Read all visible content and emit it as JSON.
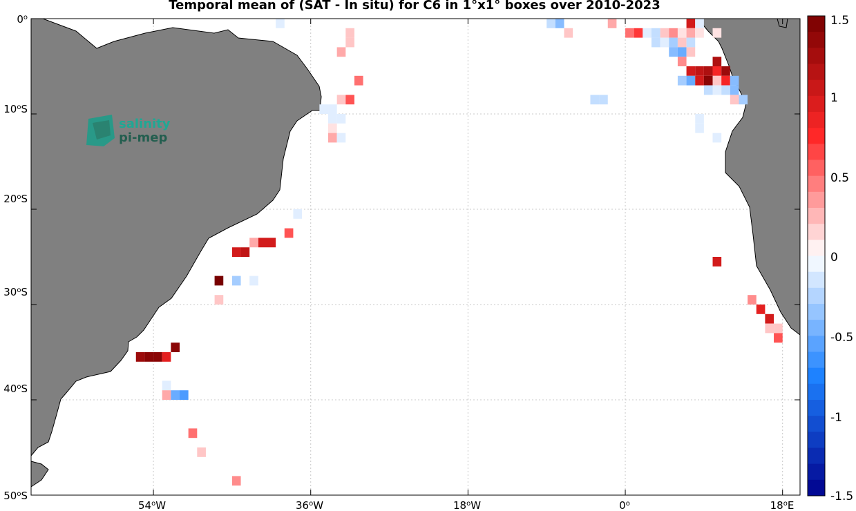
{
  "title": "Temporal mean of (SAT - In situ) for C6 in 1°x1° boxes over 2010-2023",
  "logo": {
    "line1": "salinity",
    "line2": "pi-mep"
  },
  "axes": {
    "x_ticks": [
      {
        "deg": "54",
        "dir": "W"
      },
      {
        "deg": "36",
        "dir": "W"
      },
      {
        "deg": "18",
        "dir": "W"
      },
      {
        "deg": "0",
        "dir": ""
      },
      {
        "deg": "18",
        "dir": "E"
      }
    ],
    "y_ticks": [
      {
        "deg": "0",
        "dir": ""
      },
      {
        "deg": "10",
        "dir": "S"
      },
      {
        "deg": "20",
        "dir": "S"
      },
      {
        "deg": "30",
        "dir": "S"
      },
      {
        "deg": "40",
        "dir": "S"
      },
      {
        "deg": "50",
        "dir": "S"
      }
    ]
  },
  "colorbar": {
    "labels": [
      "1.5",
      "1",
      "0.5",
      "0",
      "-0.5",
      "-1",
      "-1.5"
    ],
    "range": [
      -1.5,
      1.5
    ]
  },
  "colors": {
    "land": "#808080",
    "grid": "#c8c8c8"
  },
  "chart_data": {
    "type": "heatmap",
    "title": "Temporal mean of (SAT - In situ) for C6 in 1°x1° boxes over 2010-2023",
    "lon_range": [
      -68,
      20
    ],
    "lat_range": [
      -50,
      0
    ],
    "value_range": [
      -1.5,
      1.5
    ],
    "cells": [
      {
        "lon": -39.5,
        "lat": -0.5,
        "v": -0.1
      },
      {
        "lon": -8.5,
        "lat": -0.5,
        "v": -0.2
      },
      {
        "lon": -7.5,
        "lat": -0.5,
        "v": -0.4
      },
      {
        "lon": -1.5,
        "lat": -0.5,
        "v": 0.3
      },
      {
        "lon": 7.5,
        "lat": -0.5,
        "v": 1.0
      },
      {
        "lon": 8.5,
        "lat": -0.5,
        "v": -0.1
      },
      {
        "lon": -6.5,
        "lat": -1.5,
        "v": 0.2
      },
      {
        "lon": 0.5,
        "lat": -1.5,
        "v": 0.5
      },
      {
        "lon": 1.5,
        "lat": -1.5,
        "v": 0.7
      },
      {
        "lon": 2.5,
        "lat": -1.5,
        "v": -0.1
      },
      {
        "lon": 3.5,
        "lat": -1.5,
        "v": -0.2
      },
      {
        "lon": 4.5,
        "lat": -1.5,
        "v": 0.2
      },
      {
        "lon": 5.5,
        "lat": -1.5,
        "v": 0.4
      },
      {
        "lon": 6.5,
        "lat": -1.5,
        "v": 0.1
      },
      {
        "lon": 7.5,
        "lat": -1.5,
        "v": 0.3
      },
      {
        "lon": 8.5,
        "lat": -1.5,
        "v": 0.1
      },
      {
        "lon": 10.5,
        "lat": -1.5,
        "v": 0.1
      },
      {
        "lon": -31.5,
        "lat": -1.5,
        "v": 0.2
      },
      {
        "lon": -31.5,
        "lat": -2.5,
        "v": 0.2
      },
      {
        "lon": 3.5,
        "lat": -2.5,
        "v": -0.2
      },
      {
        "lon": 4.5,
        "lat": -2.5,
        "v": -0.1
      },
      {
        "lon": 5.5,
        "lat": -2.5,
        "v": -0.3
      },
      {
        "lon": 6.5,
        "lat": -2.5,
        "v": 0.2
      },
      {
        "lon": 7.5,
        "lat": -2.5,
        "v": -0.2
      },
      {
        "lon": 5.5,
        "lat": -3.5,
        "v": -0.4
      },
      {
        "lon": 6.5,
        "lat": -3.5,
        "v": -0.5
      },
      {
        "lon": 7.5,
        "lat": -3.5,
        "v": 0.2
      },
      {
        "lon": -32.5,
        "lat": -3.5,
        "v": 0.3
      },
      {
        "lon": 6.5,
        "lat": -4.5,
        "v": 0.4
      },
      {
        "lon": 10.5,
        "lat": -4.5,
        "v": 1.2
      },
      {
        "lon": 7.5,
        "lat": -5.5,
        "v": 1.0
      },
      {
        "lon": 8.5,
        "lat": -5.5,
        "v": 1.1
      },
      {
        "lon": 9.5,
        "lat": -5.5,
        "v": 1.2
      },
      {
        "lon": 10.5,
        "lat": -5.5,
        "v": 0.8
      },
      {
        "lon": 11.5,
        "lat": -5.5,
        "v": 1.3
      },
      {
        "lon": -30.5,
        "lat": -6.5,
        "v": 0.5
      },
      {
        "lon": 6.5,
        "lat": -6.5,
        "v": -0.3
      },
      {
        "lon": 7.5,
        "lat": -6.5,
        "v": -0.5
      },
      {
        "lon": 8.5,
        "lat": -6.5,
        "v": 1.0
      },
      {
        "lon": 9.5,
        "lat": -6.5,
        "v": 1.4
      },
      {
        "lon": 10.5,
        "lat": -6.5,
        "v": 0.2
      },
      {
        "lon": 11.5,
        "lat": -6.5,
        "v": 0.8
      },
      {
        "lon": 12.5,
        "lat": -6.5,
        "v": -0.4
      },
      {
        "lon": 9.5,
        "lat": -7.5,
        "v": -0.2
      },
      {
        "lon": 10.5,
        "lat": -7.5,
        "v": -0.1
      },
      {
        "lon": 11.5,
        "lat": -7.5,
        "v": -0.2
      },
      {
        "lon": 12.5,
        "lat": -7.5,
        "v": -0.4
      },
      {
        "lon": 13.5,
        "lat": -8.5,
        "v": -0.3
      },
      {
        "lon": 12.5,
        "lat": -8.5,
        "v": 0.2
      },
      {
        "lon": -32.5,
        "lat": -8.5,
        "v": 0.2
      },
      {
        "lon": -31.5,
        "lat": -8.5,
        "v": 0.6
      },
      {
        "lon": -3.5,
        "lat": -8.5,
        "v": -0.2
      },
      {
        "lon": -2.5,
        "lat": -8.5,
        "v": -0.2
      },
      {
        "lon": -34.5,
        "lat": -9.5,
        "v": -0.1
      },
      {
        "lon": -33.5,
        "lat": -9.5,
        "v": -0.1
      },
      {
        "lon": -33.5,
        "lat": -10.5,
        "v": -0.1
      },
      {
        "lon": -32.5,
        "lat": -10.5,
        "v": -0.1
      },
      {
        "lon": -33.5,
        "lat": -11.5,
        "v": 0.1
      },
      {
        "lon": 8.5,
        "lat": -10.5,
        "v": -0.1
      },
      {
        "lon": 8.5,
        "lat": -11.5,
        "v": -0.1
      },
      {
        "lon": -33.5,
        "lat": -12.5,
        "v": 0.3
      },
      {
        "lon": -32.5,
        "lat": -12.5,
        "v": -0.1
      },
      {
        "lon": 10.5,
        "lat": -12.5,
        "v": -0.1
      },
      {
        "lon": -37.5,
        "lat": -20.5,
        "v": -0.1
      },
      {
        "lon": -38.5,
        "lat": -22.5,
        "v": 0.6
      },
      {
        "lon": -40.5,
        "lat": -23.5,
        "v": 1.0
      },
      {
        "lon": -41.5,
        "lat": -23.5,
        "v": 1.0
      },
      {
        "lon": -42.5,
        "lat": -23.5,
        "v": 0.3
      },
      {
        "lon": -43.5,
        "lat": -24.5,
        "v": 1.1
      },
      {
        "lon": -44.5,
        "lat": -24.5,
        "v": 1.0
      },
      {
        "lon": 10.5,
        "lat": -25.5,
        "v": 1.0
      },
      {
        "lon": -46.5,
        "lat": -27.5,
        "v": 1.5
      },
      {
        "lon": -44.5,
        "lat": -27.5,
        "v": -0.3
      },
      {
        "lon": -42.5,
        "lat": -27.5,
        "v": -0.1
      },
      {
        "lon": -46.5,
        "lat": -29.5,
        "v": 0.2
      },
      {
        "lon": 14.5,
        "lat": -29.5,
        "v": 0.4
      },
      {
        "lon": 15.5,
        "lat": -30.5,
        "v": 0.9
      },
      {
        "lon": 16.5,
        "lat": -31.5,
        "v": 1.0
      },
      {
        "lon": 16.5,
        "lat": -32.5,
        "v": 0.2
      },
      {
        "lon": 17.5,
        "lat": -32.5,
        "v": 0.2
      },
      {
        "lon": 17.5,
        "lat": -33.5,
        "v": 0.6
      },
      {
        "lon": -51.5,
        "lat": -34.5,
        "v": 1.4
      },
      {
        "lon": -53.5,
        "lat": -35.5,
        "v": 1.4
      },
      {
        "lon": -54.5,
        "lat": -35.5,
        "v": 1.4
      },
      {
        "lon": -55.5,
        "lat": -35.5,
        "v": 1.3
      },
      {
        "lon": -52.5,
        "lat": -35.5,
        "v": 0.9
      },
      {
        "lon": -52.5,
        "lat": -38.5,
        "v": -0.1
      },
      {
        "lon": -52.5,
        "lat": -39.5,
        "v": 0.3
      },
      {
        "lon": -51.5,
        "lat": -39.5,
        "v": -0.5
      },
      {
        "lon": -50.5,
        "lat": -39.5,
        "v": -0.6
      },
      {
        "lon": -49.5,
        "lat": -43.5,
        "v": 0.5
      },
      {
        "lon": -48.5,
        "lat": -45.5,
        "v": 0.2
      },
      {
        "lon": -44.5,
        "lat": -48.5,
        "v": 0.4
      }
    ]
  }
}
